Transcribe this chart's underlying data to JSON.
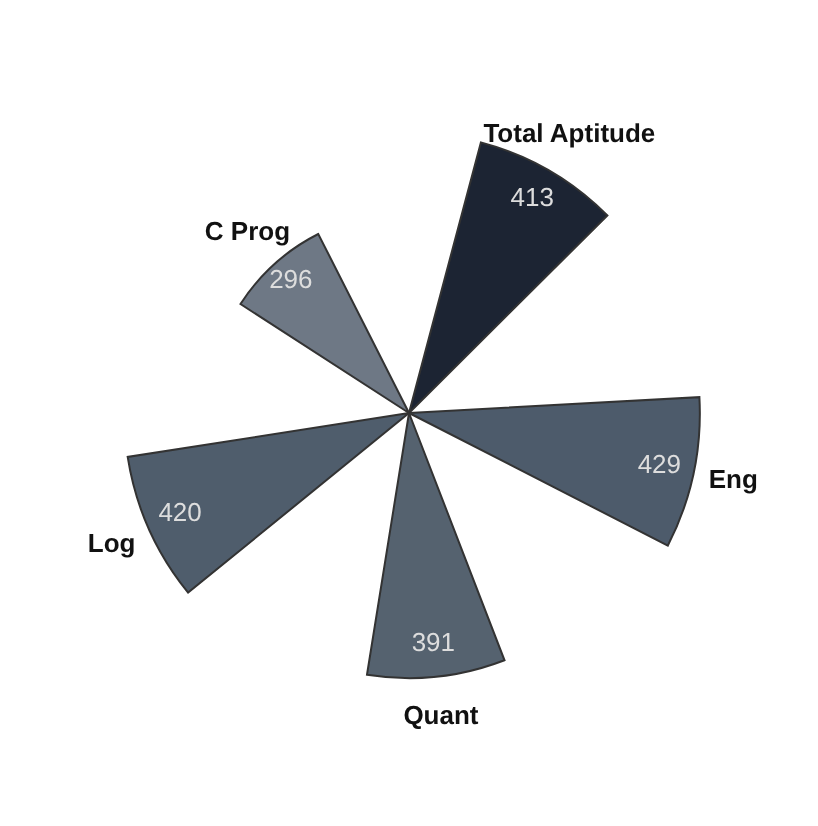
{
  "chart_data": {
    "type": "other",
    "categories": [
      "Total Aptitude",
      "Eng",
      "Quant",
      "Log",
      "C Prog"
    ],
    "values": [
      413,
      429,
      391,
      420,
      296
    ],
    "colors": [
      "#1c2433",
      "#4d5b6b",
      "#55626f",
      "#4f5d6c",
      "#6e7885"
    ],
    "data_labels": true
  }
}
